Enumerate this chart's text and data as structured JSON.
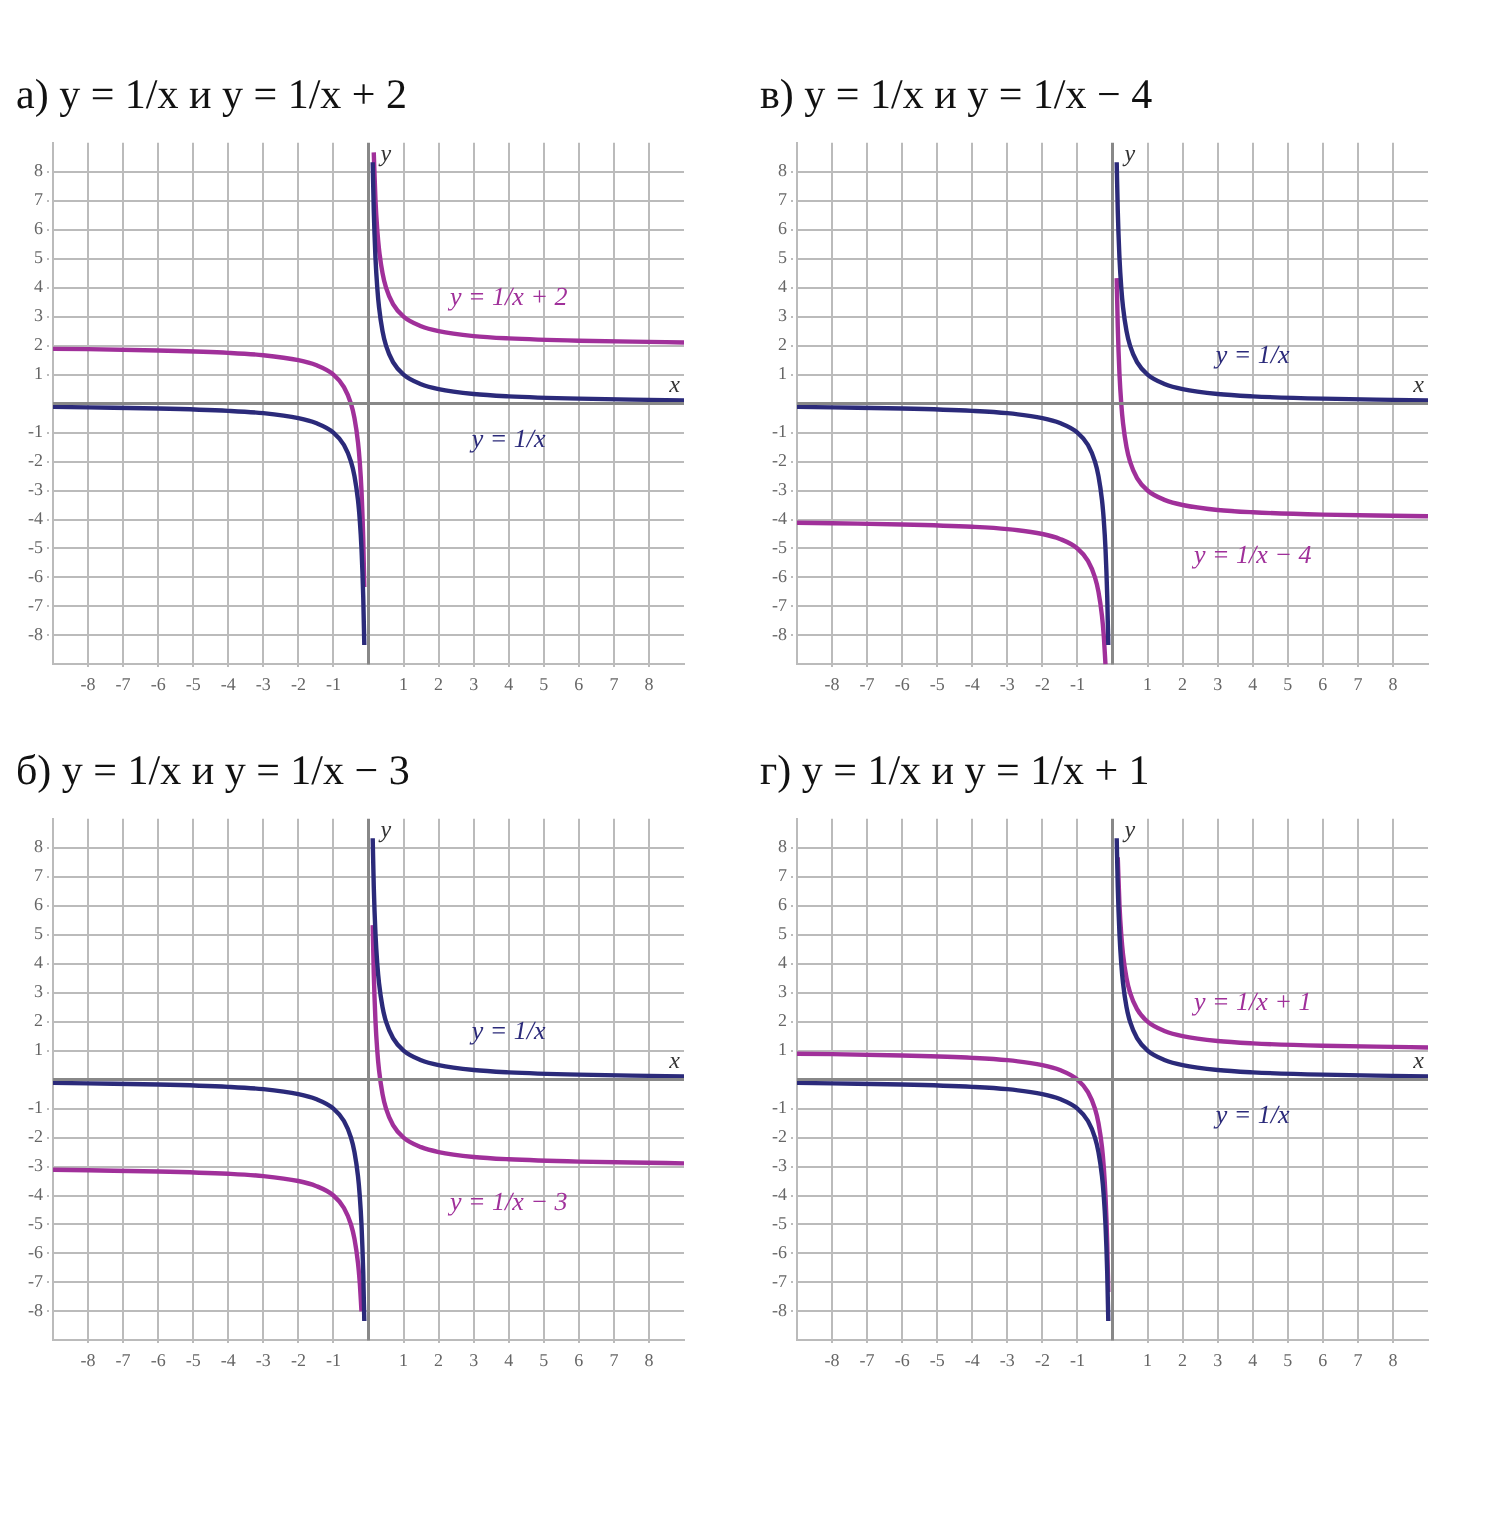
{
  "chart_data": [
    {
      "type": "line",
      "title": "а) y = 1/x  и  y = 1/x + 2",
      "xlabel": "x",
      "ylabel": "y",
      "xlim": [
        -9,
        9
      ],
      "ylim": [
        -9,
        9
      ],
      "xticks": [
        -8,
        -7,
        -6,
        -5,
        -4,
        -3,
        -2,
        -1,
        1,
        2,
        3,
        4,
        5,
        6,
        7,
        8
      ],
      "yticks": [
        -8,
        -7,
        -6,
        -5,
        -4,
        -3,
        -2,
        -1,
        1,
        2,
        3,
        4,
        5,
        6,
        7,
        8
      ],
      "grid": true,
      "marker": "none",
      "line_style": "solid",
      "x": [
        -9,
        -8,
        -6,
        -4,
        -3,
        -2,
        -1.5,
        -1,
        -0.7,
        -0.5,
        -0.4,
        -0.3,
        -0.25,
        -0.2,
        -0.15,
        -0.12,
        0,
        0.12,
        0.15,
        0.2,
        0.25,
        0.3,
        0.4,
        0.5,
        0.7,
        1,
        1.5,
        2,
        3,
        4,
        6,
        8,
        9
      ],
      "series": [
        {
          "name": "y = 1/x",
          "color": "#2b2a7a",
          "values": [
            -0.11,
            -0.13,
            -0.17,
            -0.25,
            -0.33,
            -0.5,
            -0.67,
            -1,
            -1.43,
            -2,
            -2.5,
            -3.33,
            -4,
            -5,
            -6.67,
            -8.33,
            null,
            8.33,
            6.67,
            5,
            4,
            3.33,
            2.5,
            2,
            1.43,
            1,
            0.67,
            0.5,
            0.33,
            0.25,
            0.17,
            0.13,
            0.11
          ]
        },
        {
          "name": "y = 1/x + 2",
          "color": "#a0309a",
          "values": [
            1.89,
            1.88,
            1.83,
            1.75,
            1.67,
            1.5,
            1.33,
            1,
            0.57,
            0,
            -0.5,
            -1.33,
            -2,
            -3,
            -4.67,
            -6.33,
            null,
            null,
            8.67,
            7,
            6,
            5.33,
            4.5,
            4,
            3.43,
            3,
            2.67,
            2.5,
            2.33,
            2.25,
            2.17,
            2.13,
            2.11
          ]
        }
      ]
    },
    {
      "type": "line",
      "title": "в) y = 1/x  и  y = 1/x − 4",
      "xlabel": "x",
      "ylabel": "y",
      "xlim": [
        -9,
        9
      ],
      "ylim": [
        -9,
        9
      ],
      "xticks": [
        -8,
        -7,
        -6,
        -5,
        -4,
        -3,
        -2,
        -1,
        1,
        2,
        3,
        4,
        5,
        6,
        7,
        8
      ],
      "yticks": [
        -8,
        -7,
        -6,
        -5,
        -4,
        -3,
        -2,
        -1,
        1,
        2,
        3,
        4,
        5,
        6,
        7,
        8
      ],
      "grid": true,
      "marker": "none",
      "line_style": "solid",
      "x": [
        -9,
        -8,
        -6,
        -4,
        -3,
        -2,
        -1.5,
        -1,
        -0.7,
        -0.5,
        -0.4,
        -0.3,
        -0.25,
        -0.2,
        -0.15,
        -0.12,
        0,
        0.12,
        0.15,
        0.2,
        0.25,
        0.3,
        0.4,
        0.5,
        0.7,
        1,
        1.5,
        2,
        3,
        4,
        6,
        8,
        9
      ],
      "series": [
        {
          "name": "y = 1/x",
          "color": "#2b2a7a",
          "values": [
            -0.11,
            -0.13,
            -0.17,
            -0.25,
            -0.33,
            -0.5,
            -0.67,
            -1,
            -1.43,
            -2,
            -2.5,
            -3.33,
            -4,
            -5,
            -6.67,
            -8.33,
            null,
            8.33,
            6.67,
            5,
            4,
            3.33,
            2.5,
            2,
            1.43,
            1,
            0.67,
            0.5,
            0.33,
            0.25,
            0.17,
            0.13,
            0.11
          ]
        },
        {
          "name": "y = 1/x − 4",
          "color": "#a0309a",
          "values": [
            -4.11,
            -4.13,
            -4.17,
            -4.25,
            -4.33,
            -4.5,
            -4.67,
            -5,
            -5.43,
            -6,
            -6.5,
            -7.33,
            -8,
            -9,
            null,
            null,
            null,
            4.33,
            2.67,
            1,
            0,
            -0.67,
            -1.5,
            -2,
            -2.57,
            -3,
            -3.33,
            -3.5,
            -3.67,
            -3.75,
            -3.83,
            -3.87,
            -3.89
          ]
        }
      ]
    },
    {
      "type": "line",
      "title": "б) y = 1/x  и  y = 1/x − 3",
      "xlabel": "x",
      "ylabel": "y",
      "xlim": [
        -9,
        9
      ],
      "ylim": [
        -9,
        9
      ],
      "xticks": [
        -8,
        -7,
        -6,
        -5,
        -4,
        -3,
        -2,
        -1,
        1,
        2,
        3,
        4,
        5,
        6,
        7,
        8
      ],
      "yticks": [
        -8,
        -7,
        -6,
        -5,
        -4,
        -3,
        -2,
        -1,
        1,
        2,
        3,
        4,
        5,
        6,
        7,
        8
      ],
      "grid": true,
      "marker": "none",
      "line_style": "solid",
      "x": [
        -9,
        -8,
        -6,
        -4,
        -3,
        -2,
        -1.5,
        -1,
        -0.7,
        -0.5,
        -0.4,
        -0.3,
        -0.25,
        -0.2,
        -0.15,
        -0.12,
        0,
        0.12,
        0.15,
        0.2,
        0.25,
        0.3,
        0.4,
        0.5,
        0.7,
        1,
        1.5,
        2,
        3,
        4,
        6,
        8,
        9
      ],
      "series": [
        {
          "name": "y = 1/x",
          "color": "#2b2a7a",
          "values": [
            -0.11,
            -0.13,
            -0.17,
            -0.25,
            -0.33,
            -0.5,
            -0.67,
            -1,
            -1.43,
            -2,
            -2.5,
            -3.33,
            -4,
            -5,
            -6.67,
            -8.33,
            null,
            8.33,
            6.67,
            5,
            4,
            3.33,
            2.5,
            2,
            1.43,
            1,
            0.67,
            0.5,
            0.33,
            0.25,
            0.17,
            0.13,
            0.11
          ]
        },
        {
          "name": "y = 1/x − 3",
          "color": "#a0309a",
          "values": [
            -3.11,
            -3.13,
            -3.17,
            -3.25,
            -3.33,
            -3.5,
            -3.67,
            -4,
            -4.43,
            -5,
            -5.5,
            -6.33,
            -7,
            -8,
            null,
            null,
            null,
            5.33,
            3.67,
            2,
            1,
            0.33,
            -0.5,
            -1,
            -1.57,
            -2,
            -2.33,
            -2.5,
            -2.67,
            -2.75,
            -2.83,
            -2.87,
            -2.89
          ]
        }
      ]
    },
    {
      "type": "line",
      "title": "г) y = 1/x  и  y = 1/x + 1",
      "xlabel": "x",
      "ylabel": "y",
      "xlim": [
        -9,
        9
      ],
      "ylim": [
        -9,
        9
      ],
      "xticks": [
        -8,
        -7,
        -6,
        -5,
        -4,
        -3,
        -2,
        -1,
        1,
        2,
        3,
        4,
        5,
        6,
        7,
        8
      ],
      "yticks": [
        -8,
        -7,
        -6,
        -5,
        -4,
        -3,
        -2,
        -1,
        1,
        2,
        3,
        4,
        5,
        6,
        7,
        8
      ],
      "grid": true,
      "marker": "none",
      "line_style": "solid",
      "x": [
        -9,
        -8,
        -6,
        -4,
        -3,
        -2,
        -1.5,
        -1,
        -0.7,
        -0.5,
        -0.4,
        -0.3,
        -0.25,
        -0.2,
        -0.15,
        -0.12,
        0,
        0.12,
        0.15,
        0.2,
        0.25,
        0.3,
        0.4,
        0.5,
        0.7,
        1,
        1.5,
        2,
        3,
        4,
        6,
        8,
        9
      ],
      "series": [
        {
          "name": "y = 1/x",
          "color": "#2b2a7a",
          "values": [
            -0.11,
            -0.13,
            -0.17,
            -0.25,
            -0.33,
            -0.5,
            -0.67,
            -1,
            -1.43,
            -2,
            -2.5,
            -3.33,
            -4,
            -5,
            -6.67,
            -8.33,
            null,
            8.33,
            6.67,
            5,
            4,
            3.33,
            2.5,
            2,
            1.43,
            1,
            0.67,
            0.5,
            0.33,
            0.25,
            0.17,
            0.13,
            0.11
          ]
        },
        {
          "name": "y = 1/x + 1",
          "color": "#a0309a",
          "values": [
            0.89,
            0.88,
            0.83,
            0.75,
            0.67,
            0.5,
            0.33,
            0,
            -0.43,
            -1,
            -1.5,
            -2.33,
            -3,
            -4,
            -5.67,
            -7.33,
            null,
            null,
            7.67,
            6,
            5,
            4.33,
            3.5,
            3,
            2.43,
            2,
            1.67,
            1.5,
            1.33,
            1.25,
            1.17,
            1.13,
            1.11
          ]
        }
      ]
    }
  ]
}
